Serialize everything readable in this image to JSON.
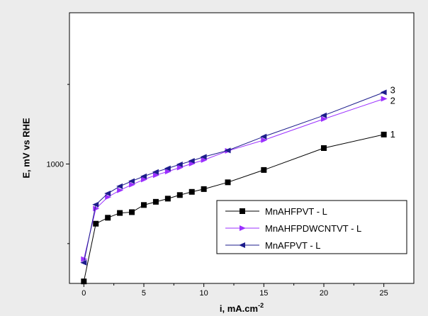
{
  "chart_data": {
    "type": "line",
    "xlabel": "i, mA.cm",
    "xlabel_sup": "-2",
    "ylabel": "E, mV vs RHE",
    "xlim": [
      -1.2,
      27.5
    ],
    "ylim": [
      700,
      1380
    ],
    "x_ticks": [
      0,
      5,
      10,
      15,
      20,
      25
    ],
    "x_tick_labels": [
      "0",
      "5",
      "10",
      "15",
      "20",
      "25"
    ],
    "y_ticks": [
      1000
    ],
    "y_tick_labels": [
      "1000"
    ],
    "y_minor_ticks": [
      800,
      1200
    ],
    "grid": false,
    "legend_position": "bottom-right",
    "series": [
      {
        "name": "MnAHFPVT - L",
        "end_label": "1",
        "color": "#000000",
        "marker": "square",
        "x": [
          0,
          1,
          2,
          3,
          4,
          5,
          6,
          7,
          8,
          9,
          10,
          12,
          15,
          20,
          25
        ],
        "y": [
          705,
          850,
          865,
          877,
          879,
          897,
          905,
          913,
          922,
          930,
          937,
          954,
          985,
          1040,
          1074
        ]
      },
      {
        "name": "MnAHFPDWCNTVT - L",
        "end_label": "2",
        "color": "#9b30ff",
        "marker": "triangle-right",
        "x": [
          0,
          1,
          2,
          3,
          4,
          5,
          6,
          7,
          8,
          9,
          10,
          12,
          15,
          20,
          25
        ],
        "y": [
          761,
          888,
          917,
          934,
          948,
          961,
          972,
          981,
          991,
          1001,
          1010,
          1033,
          1060,
          1113,
          1164
        ]
      },
      {
        "name": "MnAFPVT - L",
        "end_label": "3",
        "color": "#1c1c8c",
        "marker": "triangle-left",
        "x": [
          0,
          1,
          2,
          3,
          4,
          5,
          6,
          7,
          8,
          9,
          10,
          12,
          15,
          20,
          25
        ],
        "y": [
          752,
          898,
          926,
          944,
          957,
          969,
          980,
          989,
          999,
          1008,
          1018,
          1034,
          1069,
          1122,
          1180
        ]
      }
    ]
  }
}
